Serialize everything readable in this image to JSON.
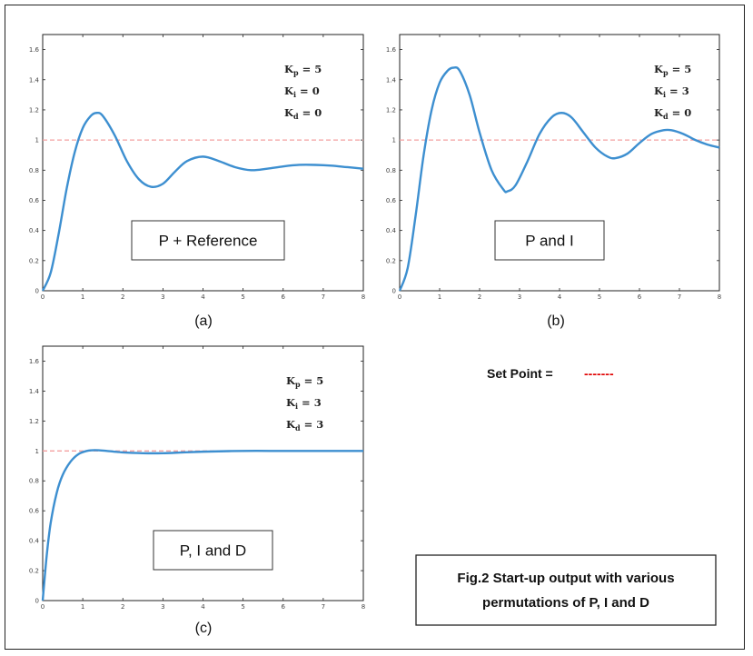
{
  "chart_data": [
    {
      "type": "line",
      "caption": "(a)",
      "box_label": "P + Reference",
      "gains": [
        {
          "sym": "K",
          "sub": "p",
          "value": "5"
        },
        {
          "sym": "K",
          "sub": "i",
          "value": "0"
        },
        {
          "sym": "K",
          "sub": "d",
          "value": "0"
        }
      ],
      "xlim": [
        0,
        8
      ],
      "ylim": [
        0,
        1.7
      ],
      "xticks": [
        "0",
        "1",
        "2",
        "3",
        "4",
        "5",
        "6",
        "7",
        "8"
      ],
      "yticks": [
        "0",
        "0.2",
        "0.4",
        "0.6",
        "0.8",
        "1",
        "1.2",
        "1.4",
        "1.6"
      ],
      "setpoint": 1,
      "series": [
        {
          "x": [
            0,
            0.2,
            0.4,
            0.6,
            0.8,
            1.0,
            1.2,
            1.35,
            1.5,
            1.8,
            2.1,
            2.4,
            2.7,
            3.0,
            3.3,
            3.6,
            4.0,
            4.4,
            4.8,
            5.2,
            5.6,
            6.0,
            6.4,
            6.8,
            7.2,
            7.6,
            8.0
          ],
          "y": [
            0,
            0.12,
            0.38,
            0.68,
            0.92,
            1.08,
            1.16,
            1.18,
            1.16,
            1.03,
            0.86,
            0.74,
            0.69,
            0.71,
            0.79,
            0.86,
            0.89,
            0.86,
            0.82,
            0.8,
            0.81,
            0.825,
            0.835,
            0.835,
            0.83,
            0.82,
            0.81
          ]
        }
      ]
    },
    {
      "type": "line",
      "caption": "(b)",
      "box_label": "P and I",
      "gains": [
        {
          "sym": "K",
          "sub": "p",
          "value": "5"
        },
        {
          "sym": "K",
          "sub": "i",
          "value": "3"
        },
        {
          "sym": "K",
          "sub": "d",
          "value": "0"
        }
      ],
      "xlim": [
        0,
        8
      ],
      "ylim": [
        0,
        1.7
      ],
      "xticks": [
        "0",
        "1",
        "2",
        "3",
        "4",
        "5",
        "6",
        "7",
        "8"
      ],
      "yticks": [
        "0",
        "0.2",
        "0.4",
        "0.6",
        "0.8",
        "1",
        "1.2",
        "1.4",
        "1.6"
      ],
      "setpoint": 1,
      "series": [
        {
          "x": [
            0,
            0.2,
            0.4,
            0.6,
            0.8,
            1.0,
            1.2,
            1.35,
            1.5,
            1.75,
            2.0,
            2.3,
            2.6,
            2.7,
            2.9,
            3.2,
            3.5,
            3.8,
            4.05,
            4.3,
            4.6,
            4.9,
            5.2,
            5.4,
            5.7,
            6.0,
            6.3,
            6.6,
            6.8,
            7.1,
            7.4,
            7.7,
            8.0
          ],
          "y": [
            0,
            0.15,
            0.5,
            0.9,
            1.2,
            1.38,
            1.46,
            1.48,
            1.46,
            1.3,
            1.05,
            0.8,
            0.67,
            0.66,
            0.7,
            0.86,
            1.04,
            1.15,
            1.18,
            1.15,
            1.05,
            0.95,
            0.89,
            0.88,
            0.91,
            0.98,
            1.04,
            1.065,
            1.065,
            1.04,
            1.0,
            0.97,
            0.95
          ]
        }
      ]
    },
    {
      "type": "line",
      "caption": "(c)",
      "box_label": "P, I and D",
      "gains": [
        {
          "sym": "K",
          "sub": "p",
          "value": "5"
        },
        {
          "sym": "K",
          "sub": "i",
          "value": "3"
        },
        {
          "sym": "K",
          "sub": "d",
          "value": "3"
        }
      ],
      "xlim": [
        0,
        8
      ],
      "ylim": [
        0,
        1.7
      ],
      "xticks": [
        "0",
        "1",
        "2",
        "3",
        "4",
        "5",
        "6",
        "7",
        "8"
      ],
      "yticks": [
        "0",
        "0.2",
        "0.4",
        "0.6",
        "0.8",
        "1",
        "1.2",
        "1.4",
        "1.6"
      ],
      "setpoint": 1,
      "series": [
        {
          "x": [
            0,
            0.1,
            0.2,
            0.35,
            0.5,
            0.7,
            0.9,
            1.1,
            1.3,
            1.6,
            2.0,
            2.5,
            3.0,
            3.5,
            4.0,
            5.0,
            6.0,
            7.0,
            8.0
          ],
          "y": [
            0,
            0.3,
            0.52,
            0.72,
            0.84,
            0.93,
            0.98,
            1.0,
            1.005,
            1.0,
            0.99,
            0.985,
            0.985,
            0.99,
            0.995,
            1.0,
            1.0,
            1.0,
            1.0
          ]
        }
      ]
    }
  ],
  "legend": {
    "label": "Set Point  =",
    "dashes": "-------",
    "dash_color": "#e00000"
  },
  "caption": {
    "line1": "Fig.2  Start-up output with various",
    "line2": "permutations of P, I and D"
  },
  "colors": {
    "curve": "#3d8fd0",
    "setpoint_line": "#f4a0a0",
    "axis": "#222222"
  }
}
